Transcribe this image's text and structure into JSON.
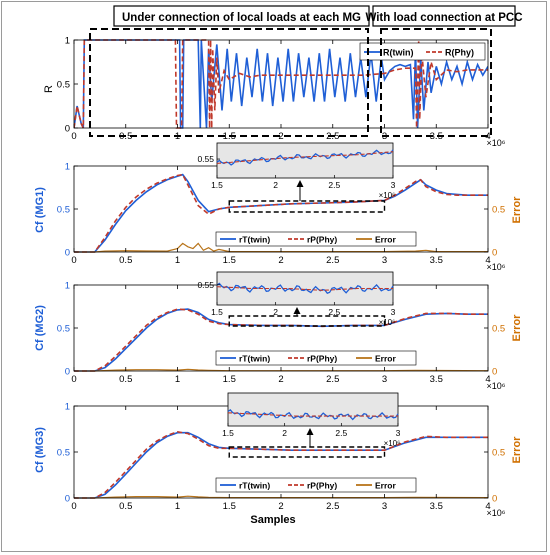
{
  "banners": {
    "left": "Under connection of local loads at each MG",
    "right": "With load connection at PCC"
  },
  "colors": {
    "twin": "#1f5fd6",
    "phy": "#c0392b",
    "error": "#b8741a",
    "left_axis_label": "#1f5fd6",
    "right_axis_label": "#d07000",
    "inset_bg": "#e6e6e6"
  },
  "chart_data": [
    {
      "type": "line",
      "panel": "R",
      "ylabel": "R",
      "xlim": [
        0,
        4
      ],
      "ylim": [
        0,
        1
      ],
      "x_ticks": [
        0,
        0.5,
        1,
        1.5,
        2,
        2.5,
        3,
        3.5,
        4
      ],
      "y_ticks": [
        0,
        0.5,
        1
      ],
      "x_exponent": "×10⁶",
      "legend": [
        "R(twin)",
        "R(Phy)"
      ],
      "legend_position": "top-right",
      "series": [
        {
          "name": "R(twin)",
          "x": [
            0,
            0.03,
            0.07,
            0.09,
            0.1,
            0.13,
            0.2,
            0.5,
            1.02,
            1.03,
            1.05,
            1.06,
            1.07,
            1.2,
            1.22,
            1.23,
            1.28,
            1.3,
            1.33,
            1.38,
            1.43,
            1.48,
            1.52,
            1.57,
            1.62,
            1.67,
            1.72,
            1.77,
            1.82,
            1.87,
            1.92,
            1.97,
            2.02,
            2.07,
            2.12,
            2.17,
            2.22,
            2.27,
            2.32,
            2.37,
            2.42,
            2.47,
            2.52,
            2.57,
            2.62,
            2.67,
            2.72,
            2.77,
            2.82,
            2.87,
            2.92,
            2.97,
            3.0,
            3.05,
            3.1,
            3.15,
            3.2,
            3.25,
            3.28,
            3.3,
            3.32,
            3.35,
            3.38,
            3.42,
            3.45,
            3.5,
            3.55,
            3.6,
            3.65,
            3.7,
            3.75,
            3.8,
            3.85,
            3.9,
            3.95,
            4.0
          ],
          "y": [
            0,
            0.25,
            0.05,
            0,
            1,
            1,
            1,
            1,
            1,
            0,
            0,
            1,
            1,
            1,
            0,
            1,
            0,
            0.9,
            0.3,
            0.95,
            0.2,
            0.9,
            0.3,
            0.85,
            0.25,
            0.8,
            0.35,
            0.9,
            0.3,
            0.85,
            0.25,
            0.8,
            0.3,
            0.9,
            0.3,
            0.85,
            0.35,
            0.8,
            0.3,
            0.85,
            0.3,
            0.9,
            0.35,
            0.8,
            0.3,
            0.85,
            0.35,
            0.8,
            0.35,
            0.85,
            0.3,
            0.8,
            0.55,
            0.65,
            0.7,
            0.72,
            0.7,
            0.72,
            0.1,
            0.9,
            0.0,
            0.8,
            0.2,
            0.75,
            0.4,
            0.7,
            0.5,
            0.75,
            0.55,
            0.7,
            0.5,
            0.75,
            0.55,
            0.72,
            0.6,
            0.7
          ]
        },
        {
          "name": "R(Phy)",
          "x": [
            0,
            0.03,
            0.07,
            0.09,
            0.1,
            0.13,
            0.2,
            0.5,
            0.98,
            0.99,
            1.04,
            1.05,
            1.3,
            1.31,
            1.32,
            1.33,
            1.34,
            1.36,
            1.38,
            1.4,
            1.45,
            1.5,
            1.6,
            1.7,
            1.8,
            2.0,
            2.2,
            2.4,
            2.6,
            2.8,
            3.0,
            3.1,
            3.2,
            3.3,
            3.31,
            3.33,
            3.34,
            3.36,
            3.4,
            3.45,
            3.5,
            3.6,
            3.7,
            3.8,
            4.0
          ],
          "y": [
            0,
            0.25,
            0.05,
            0,
            1,
            1,
            1,
            1,
            1,
            0,
            0,
            1,
            1,
            0,
            1,
            0,
            0.9,
            0.2,
            0.8,
            0.4,
            0.65,
            0.55,
            0.62,
            0.58,
            0.6,
            0.6,
            0.6,
            0.6,
            0.6,
            0.6,
            0.62,
            0.66,
            0.68,
            0.68,
            0,
            1,
            0.1,
            0.85,
            0.35,
            0.75,
            0.55,
            0.66,
            0.64,
            0.66,
            0.66
          ]
        }
      ]
    },
    {
      "type": "line",
      "panel": "MG1",
      "ylabel": "Cf (MG1)",
      "ylabel_right": "Error",
      "xlim": [
        0,
        4
      ],
      "ylim": [
        0,
        1
      ],
      "x_ticks": [
        0,
        0.5,
        1,
        1.5,
        2,
        2.5,
        3,
        3.5,
        4
      ],
      "y_ticks": [
        0,
        0.5,
        1
      ],
      "right_ticks": [
        0,
        0.5
      ],
      "x_exponent": "×10⁶",
      "legend": [
        "rT(twin)",
        "rP(Phy)",
        "Error"
      ],
      "legend_position": "bottom-center",
      "inset": {
        "xlim": [
          1.5,
          3
        ],
        "y_tick": "0.55",
        "x_ticks": [
          1.5,
          2,
          2.5,
          3
        ],
        "x_exponent": "×10⁶"
      },
      "series": [
        {
          "name": "rT(twin)",
          "x": [
            0,
            0.2,
            0.3,
            0.4,
            0.5,
            0.6,
            0.7,
            0.8,
            0.9,
            1.0,
            1.05,
            1.1,
            1.2,
            1.3,
            1.4,
            1.5,
            1.8,
            2.1,
            2.4,
            2.7,
            3.0,
            3.1,
            3.2,
            3.3,
            3.35,
            3.4,
            3.5,
            3.6,
            3.7,
            3.8,
            4.0
          ],
          "y": [
            0,
            0,
            0.14,
            0.32,
            0.48,
            0.6,
            0.7,
            0.78,
            0.84,
            0.88,
            0.9,
            0.82,
            0.6,
            0.47,
            0.5,
            0.52,
            0.54,
            0.56,
            0.57,
            0.58,
            0.6,
            0.65,
            0.72,
            0.8,
            0.84,
            0.78,
            0.72,
            0.68,
            0.67,
            0.66,
            0.66
          ]
        },
        {
          "name": "rP(Phy)",
          "x": [
            0,
            0.2,
            0.3,
            0.4,
            0.5,
            0.6,
            0.7,
            0.8,
            0.9,
            1.0,
            1.05,
            1.1,
            1.2,
            1.3,
            1.4,
            1.5,
            1.8,
            2.1,
            2.4,
            2.7,
            3.0,
            3.1,
            3.2,
            3.3,
            3.35,
            3.4,
            3.5,
            3.6,
            3.7,
            3.8,
            4.0
          ],
          "y": [
            0,
            0,
            0.17,
            0.36,
            0.52,
            0.64,
            0.73,
            0.8,
            0.85,
            0.89,
            0.9,
            0.78,
            0.54,
            0.44,
            0.5,
            0.52,
            0.54,
            0.56,
            0.57,
            0.58,
            0.6,
            0.66,
            0.74,
            0.82,
            0.84,
            0.76,
            0.7,
            0.67,
            0.66,
            0.66,
            0.66
          ]
        },
        {
          "name": "Error",
          "x": [
            0,
            0.2,
            0.3,
            0.5,
            0.7,
            0.9,
            1.0,
            1.05,
            1.1,
            1.15,
            1.2,
            1.25,
            1.3,
            1.35,
            1.4,
            1.5,
            2.0,
            2.5,
            3.0,
            3.3,
            3.4,
            3.5,
            4.0
          ],
          "y": [
            0,
            0,
            0.01,
            0.015,
            0.012,
            0.01,
            0.04,
            0.1,
            0.06,
            0.04,
            0.1,
            0.02,
            0.05,
            0.01,
            0.03,
            0.005,
            0.005,
            0.005,
            0.005,
            0.01,
            0.02,
            0.005,
            0.005
          ]
        }
      ]
    },
    {
      "type": "line",
      "panel": "MG2",
      "ylabel": "Cf (MG2)",
      "ylabel_right": "Error",
      "xlim": [
        0,
        4
      ],
      "ylim": [
        0,
        1
      ],
      "x_ticks": [
        0,
        0.5,
        1,
        1.5,
        2,
        2.5,
        3,
        3.5,
        4
      ],
      "y_ticks": [
        0,
        0.5,
        1
      ],
      "right_ticks": [
        0,
        0.5
      ],
      "x_exponent": "×10⁶",
      "legend": [
        "rT(twin)",
        "rP(Phy)",
        "Error"
      ],
      "legend_position": "bottom-center",
      "inset": {
        "xlim": [
          1.5,
          3
        ],
        "y_tick": "0.55",
        "x_ticks": [
          1.5,
          2,
          2.5,
          3
        ],
        "x_exponent": "×10⁶"
      },
      "series": [
        {
          "name": "rT(twin)",
          "x": [
            0,
            0.2,
            0.3,
            0.4,
            0.5,
            0.6,
            0.7,
            0.8,
            0.9,
            1.0,
            1.1,
            1.2,
            1.3,
            1.4,
            1.5,
            1.8,
            2.1,
            2.4,
            2.7,
            3.0,
            3.2,
            3.4,
            3.6,
            3.8,
            4.0
          ],
          "y": [
            0,
            0,
            0.04,
            0.14,
            0.26,
            0.38,
            0.5,
            0.6,
            0.67,
            0.71,
            0.72,
            0.68,
            0.6,
            0.56,
            0.54,
            0.53,
            0.53,
            0.52,
            0.53,
            0.53,
            0.6,
            0.66,
            0.67,
            0.66,
            0.66
          ]
        },
        {
          "name": "rP(Phy)",
          "x": [
            0,
            0.2,
            0.3,
            0.4,
            0.5,
            0.6,
            0.7,
            0.8,
            0.9,
            1.0,
            1.1,
            1.2,
            1.3,
            1.4,
            1.5,
            1.8,
            2.1,
            2.4,
            2.7,
            3.0,
            3.2,
            3.4,
            3.6,
            3.8,
            4.0
          ],
          "y": [
            0,
            0,
            0.06,
            0.17,
            0.29,
            0.41,
            0.53,
            0.62,
            0.68,
            0.72,
            0.71,
            0.66,
            0.58,
            0.55,
            0.54,
            0.53,
            0.53,
            0.52,
            0.53,
            0.53,
            0.61,
            0.67,
            0.67,
            0.66,
            0.66
          ]
        },
        {
          "name": "Error",
          "x": [
            0,
            0.2,
            0.4,
            0.6,
            0.8,
            1.0,
            1.1,
            1.2,
            1.3,
            1.5,
            2.0,
            2.5,
            3.0,
            3.3,
            4.0
          ],
          "y": [
            0,
            0,
            0.01,
            0.015,
            0.015,
            0.01,
            0.02,
            0.012,
            0.008,
            0.004,
            0.004,
            0.004,
            0.004,
            0.008,
            0.004
          ]
        }
      ]
    },
    {
      "type": "line",
      "panel": "MG3",
      "ylabel": "Cf (MG3)",
      "ylabel_right": "Error",
      "xlabel": "Samples",
      "xlim": [
        0,
        4
      ],
      "ylim": [
        0,
        1
      ],
      "x_ticks": [
        0,
        0.5,
        1,
        1.5,
        2,
        2.5,
        3,
        3.5,
        4
      ],
      "y_ticks": [
        0,
        0.5,
        1
      ],
      "right_ticks": [
        0,
        0.5
      ],
      "x_exponent": "×10⁶",
      "legend": [
        "rT(twin)",
        "rP(Phy)",
        "Error"
      ],
      "legend_position": "bottom-center",
      "inset": {
        "xlim": [
          1.5,
          3
        ],
        "x_ticks": [
          1.5,
          2,
          2.5,
          3
        ],
        "x_exponent": "×10⁶"
      },
      "series": [
        {
          "name": "rT(twin)",
          "x": [
            0,
            0.2,
            0.3,
            0.4,
            0.5,
            0.6,
            0.7,
            0.8,
            0.9,
            1.0,
            1.1,
            1.2,
            1.3,
            1.4,
            1.5,
            1.8,
            2.1,
            2.4,
            2.7,
            3.0,
            3.2,
            3.4,
            3.6,
            3.8,
            4.0
          ],
          "y": [
            0,
            0,
            0.04,
            0.14,
            0.26,
            0.38,
            0.5,
            0.6,
            0.67,
            0.71,
            0.71,
            0.66,
            0.59,
            0.55,
            0.54,
            0.53,
            0.52,
            0.52,
            0.52,
            0.52,
            0.6,
            0.66,
            0.66,
            0.66,
            0.66
          ]
        },
        {
          "name": "rP(Phy)",
          "x": [
            0,
            0.2,
            0.3,
            0.4,
            0.5,
            0.6,
            0.7,
            0.8,
            0.9,
            1.0,
            1.1,
            1.2,
            1.3,
            1.4,
            1.5,
            1.8,
            2.1,
            2.4,
            2.7,
            3.0,
            3.2,
            3.4,
            3.6,
            3.8,
            4.0
          ],
          "y": [
            0,
            0,
            0.06,
            0.17,
            0.29,
            0.41,
            0.53,
            0.62,
            0.68,
            0.72,
            0.7,
            0.64,
            0.57,
            0.54,
            0.54,
            0.53,
            0.52,
            0.52,
            0.52,
            0.52,
            0.61,
            0.67,
            0.66,
            0.66,
            0.66
          ]
        },
        {
          "name": "Error",
          "x": [
            0,
            0.2,
            0.4,
            0.6,
            0.8,
            1.0,
            1.1,
            1.2,
            1.3,
            1.5,
            2.0,
            2.5,
            3.0,
            3.3,
            4.0
          ],
          "y": [
            0,
            0,
            0.01,
            0.015,
            0.015,
            0.01,
            0.02,
            0.012,
            0.008,
            0.004,
            0.004,
            0.004,
            0.004,
            0.008,
            0.004
          ]
        }
      ]
    }
  ]
}
